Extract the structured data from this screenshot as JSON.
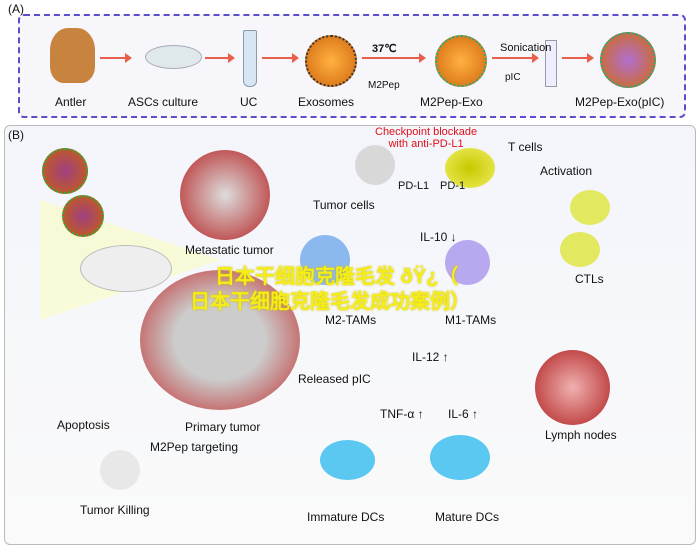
{
  "panel_a": {
    "label": "(A)",
    "steps": [
      "Antler",
      "ASCs culture",
      "UC",
      "Exosomes",
      "M2Pep-Exo",
      "M2Pep-Exo(pIC)"
    ],
    "temp": "37℃",
    "m2pep": "M2Pep",
    "sonication": "Sonication",
    "pic": "pIC"
  },
  "panel_b": {
    "label": "(B)",
    "checkpoint": "Checkpoint blockade\nwith anti-PD-L1",
    "t_cells": "T cells",
    "pd_l1": "PD-L1",
    "pd_1": "PD-1",
    "tumor_cells": "Tumor cells",
    "activation": "Activation",
    "metastatic": "Metastatic tumor",
    "il10": "IL-10 ↓",
    "m2_tams": "M2-TAMs",
    "m1_tams": "M1-TAMs",
    "ctls": "CTLs",
    "il12": "IL-12 ↑",
    "released_pic": "Released pIC",
    "primary": "Primary tumor",
    "apoptosis": "Apoptosis",
    "m2pep_targeting": "M2Pep targeting",
    "tnf": "TNF-α ↑",
    "il6": "IL-6 ↑",
    "lymph": "Lymph nodes",
    "tumor_killing": "Tumor Killing",
    "immature_dcs": "Immature DCs",
    "mature_dcs": "Mature DCs"
  },
  "watermark": {
    "line1": "日本干细胞克隆毛发 ðŸ¿（",
    "line2": "日本干细胞克隆毛发成功案例）"
  }
}
